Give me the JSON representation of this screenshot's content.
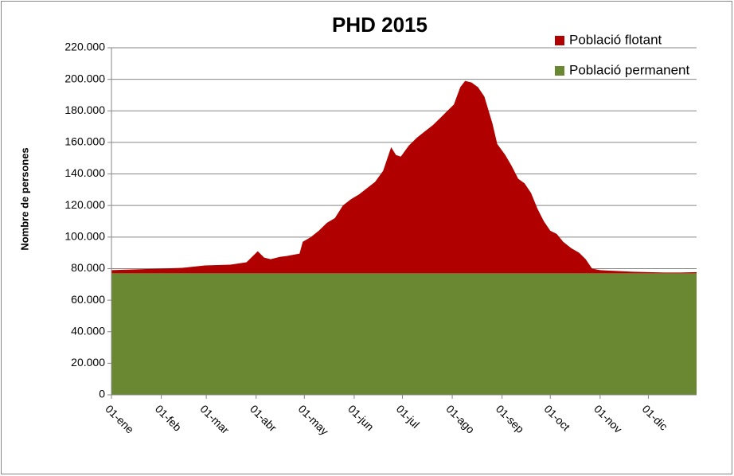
{
  "chart_data": {
    "type": "stacked-area",
    "title": "PHD 2015",
    "y_label": "Nombre de persones",
    "x": [
      1,
      15,
      31,
      45,
      59,
      75,
      85,
      90,
      92,
      96,
      100,
      106,
      110,
      118,
      120,
      125,
      130,
      135,
      140,
      145,
      150,
      155,
      160,
      165,
      170,
      175,
      178,
      181,
      186,
      191,
      196,
      201,
      206,
      211,
      214,
      218,
      221,
      225,
      229,
      233,
      238,
      241,
      246,
      250,
      254,
      258,
      262,
      266,
      270,
      274,
      278,
      282,
      287,
      292,
      296,
      300,
      305,
      315,
      325,
      335,
      345,
      355,
      365
    ],
    "xlim": [
      1,
      365
    ],
    "xticks": [
      {
        "value": 1,
        "label": "01-ene"
      },
      {
        "value": 32,
        "label": "01-feb"
      },
      {
        "value": 60,
        "label": "01-mar"
      },
      {
        "value": 91,
        "label": "01-abr"
      },
      {
        "value": 121,
        "label": "01-may"
      },
      {
        "value": 152,
        "label": "01-jun"
      },
      {
        "value": 182,
        "label": "01-jul"
      },
      {
        "value": 213,
        "label": "01-ago"
      },
      {
        "value": 244,
        "label": "01-sep"
      },
      {
        "value": 274,
        "label": "01-oct"
      },
      {
        "value": 305,
        "label": "01-nov"
      },
      {
        "value": 335,
        "label": "01-dic"
      }
    ],
    "ylim": [
      0,
      220000
    ],
    "yticks": [
      0,
      {
        "value": 20000,
        "label": "20.000"
      },
      {
        "value": 40000,
        "label": "40.000"
      },
      {
        "value": 60000,
        "label": "60.000"
      },
      {
        "value": 80000,
        "label": "80.000"
      },
      {
        "value": 100000,
        "label": "100.000"
      },
      {
        "value": 120000,
        "label": "120.000"
      },
      {
        "value": 140000,
        "label": "140.000"
      },
      {
        "value": 160000,
        "label": "160.000"
      },
      {
        "value": 180000,
        "label": "180.000"
      },
      {
        "value": 200000,
        "label": "200.000"
      },
      {
        "value": 220000,
        "label": "220.000"
      }
    ],
    "grid": true,
    "legend": "top-right",
    "series": [
      {
        "name": "Població flotant",
        "color": "#b00000",
        "values": [
          2000,
          2500,
          3000,
          3500,
          5000,
          5500,
          7000,
          12000,
          14000,
          10000,
          9000,
          10500,
          11000,
          12500,
          20000,
          23000,
          27000,
          32000,
          35000,
          43000,
          47000,
          50000,
          54000,
          58000,
          65000,
          80000,
          75000,
          74000,
          81000,
          86000,
          90000,
          94000,
          99000,
          104000,
          107000,
          118000,
          122000,
          121000,
          118000,
          112000,
          95000,
          82000,
          75000,
          68000,
          60000,
          57000,
          51000,
          41000,
          33000,
          27000,
          25000,
          20000,
          16000,
          13000,
          9000,
          3000,
          2000,
          1500,
          1000,
          800,
          500,
          500,
          800
        ]
      },
      {
        "name": "Població permanent",
        "color": "#6a8731",
        "values": [
          77000,
          77000,
          77000,
          77000,
          77000,
          77000,
          77000,
          77000,
          77000,
          77000,
          77000,
          77000,
          77000,
          77000,
          77000,
          77000,
          77000,
          77000,
          77000,
          77000,
          77000,
          77000,
          77000,
          77000,
          77000,
          77000,
          77000,
          77000,
          77000,
          77000,
          77000,
          77000,
          77000,
          77000,
          77000,
          77000,
          77000,
          77000,
          77000,
          77000,
          77000,
          77000,
          77000,
          77000,
          77000,
          77000,
          77000,
          77000,
          77000,
          77000,
          77000,
          77000,
          77000,
          77000,
          77000,
          77000,
          77000,
          77000,
          77000,
          77000,
          77000,
          77000,
          77000
        ]
      }
    ]
  }
}
